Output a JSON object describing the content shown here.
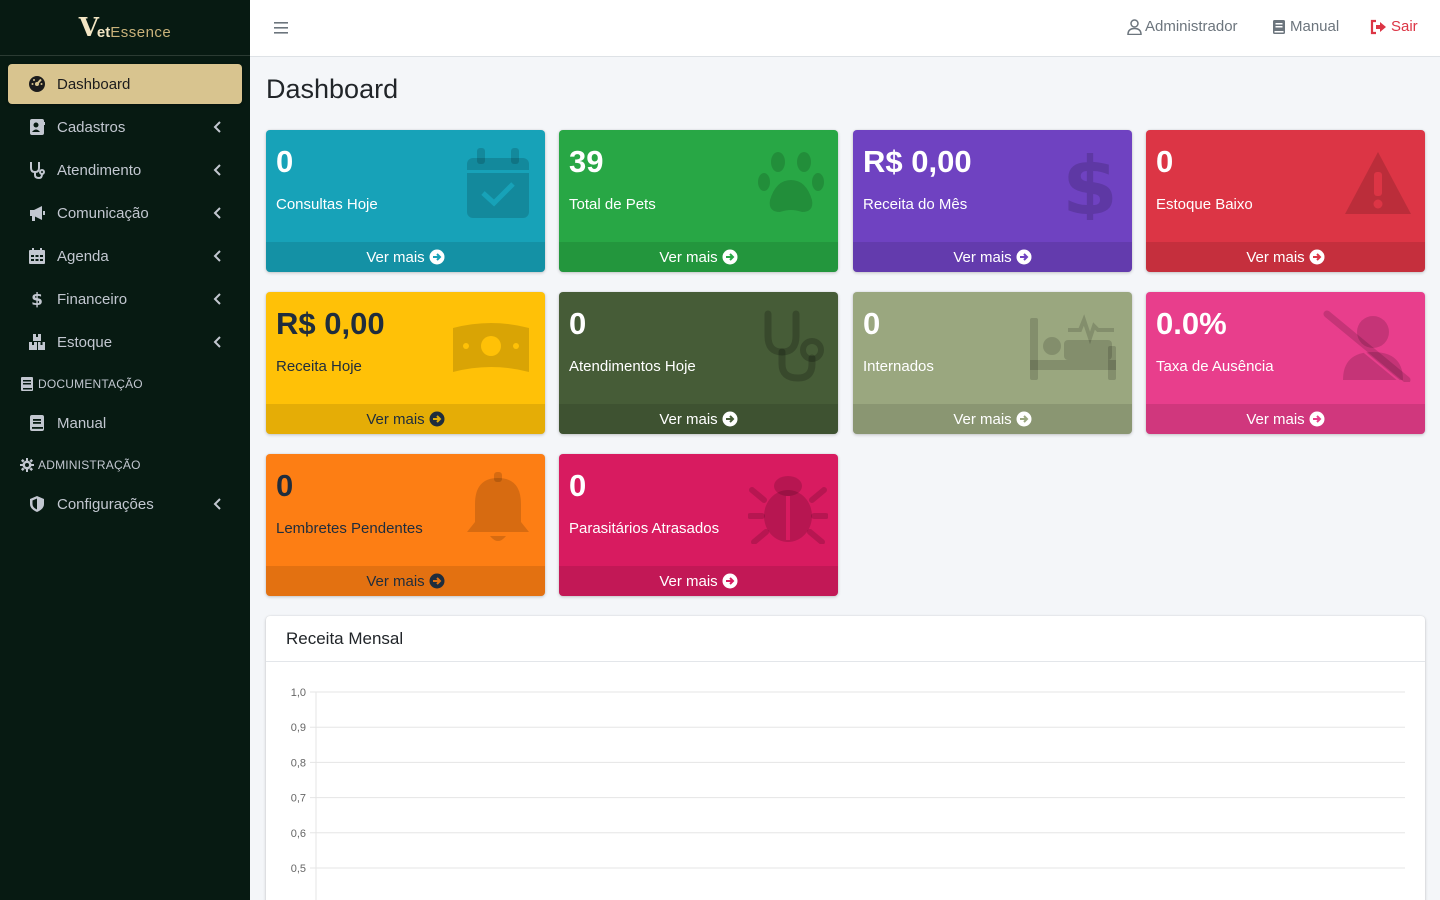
{
  "brand": {
    "logo_v": "V",
    "logo_et": "et",
    "logo_essence": "Essence"
  },
  "sidebar": {
    "items": [
      {
        "label": "Dashboard",
        "icon": "gauge-icon",
        "active": true
      },
      {
        "label": "Cadastros",
        "icon": "address-card-icon"
      },
      {
        "label": "Atendimento",
        "icon": "stethoscope-icon"
      },
      {
        "label": "Comunicação",
        "icon": "megaphone-icon"
      },
      {
        "label": "Agenda",
        "icon": "calendar-icon"
      },
      {
        "label": "Financeiro",
        "icon": "dollar-icon"
      },
      {
        "label": "Estoque",
        "icon": "boxes-icon"
      }
    ],
    "header_doc": "DOCUMENTAÇÃO",
    "manual": "Manual",
    "header_admin": "ADMINISTRAÇÃO",
    "configuracoes": "Configurações"
  },
  "topbar": {
    "user": "Administrador",
    "manual": "Manual",
    "logout": "Sair"
  },
  "page_title": "Dashboard",
  "boxes": [
    {
      "value": "0",
      "label": "Consultas Hoje",
      "footer": "Ver mais",
      "color": "#17a2b8",
      "icon": "calendar-check-icon"
    },
    {
      "value": "39",
      "label": "Total de Pets",
      "footer": "Ver mais",
      "color": "#28a745",
      "icon": "paw-icon"
    },
    {
      "value": "R$ 0,00",
      "label": "Receita do Mês",
      "footer": "Ver mais",
      "color": "#6f42c1",
      "icon": "dollar-icon"
    },
    {
      "value": "0",
      "label": "Estoque Baixo",
      "footer": "Ver mais",
      "color": "#dc3545",
      "icon": "warning-icon"
    },
    {
      "value": "R$ 0,00",
      "label": "Receita Hoje",
      "footer": "Ver mais",
      "color": "#ffc107",
      "icon": "money-bill-icon"
    },
    {
      "value": "0",
      "label": "Atendimentos Hoje",
      "footer": "Ver mais",
      "color": "#465c37",
      "icon": "stethoscope-icon"
    },
    {
      "value": "0",
      "label": "Internados",
      "footer": "Ver mais",
      "color": "#9aa77f",
      "icon": "bed-pulse-icon"
    },
    {
      "value": "0.0%",
      "label": "Taxa de Ausência",
      "footer": "Ver mais",
      "color": "#e83e8c",
      "icon": "user-slash-icon"
    },
    {
      "value": "0",
      "label": "Lembretes Pendentes",
      "footer": "Ver mais",
      "color": "#fd7e14",
      "icon": "bell-icon"
    },
    {
      "value": "0",
      "label": "Parasitários Atrasados",
      "footer": "Ver mais",
      "color": "#d81b60",
      "icon": "bug-icon"
    }
  ],
  "chart_title": "Receita Mensal",
  "chart_data": {
    "type": "line",
    "title": "",
    "xlabel": "",
    "ylabel": "",
    "ylim": [
      0,
      1.0
    ],
    "yticks": [
      "1,0",
      "0,9",
      "0,8",
      "0,7",
      "0,6",
      "0,5"
    ],
    "series": [],
    "grid": true
  }
}
